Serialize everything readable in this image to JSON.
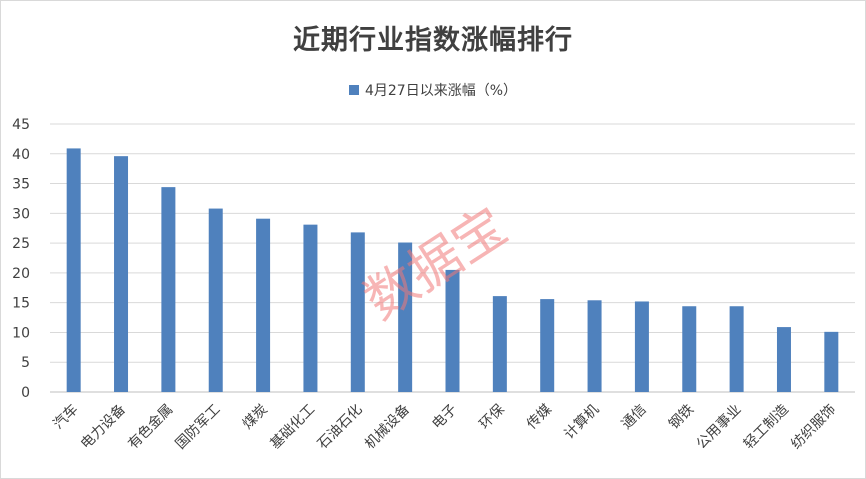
{
  "chart_data": {
    "type": "bar",
    "title": "近期行业指数涨幅排行",
    "legend": "4月27日以来涨幅（%）",
    "legend_position": "top",
    "series": [
      {
        "name": "4月27日以来涨幅（%）",
        "color": "#4f81bd",
        "values": [
          40.9,
          39.6,
          34.4,
          30.8,
          29.1,
          28.1,
          26.8,
          25.1,
          20.5,
          16.1,
          15.6,
          15.4,
          15.2,
          14.4,
          14.4,
          10.9,
          10.1
        ]
      }
    ],
    "categories": [
      "汽车",
      "电力设备",
      "有色金属",
      "国防军工",
      "煤炭",
      "基础化工",
      "石油石化",
      "机械设备",
      "电子",
      "环保",
      "传媒",
      "计算机",
      "通信",
      "钢铁",
      "公用事业",
      "轻工制造",
      "纺织服饰"
    ],
    "ylim": [
      0,
      45
    ],
    "yticks": [
      0,
      5,
      10,
      15,
      20,
      25,
      30,
      35,
      40,
      45
    ],
    "grid": true,
    "watermark": "数据宝"
  }
}
